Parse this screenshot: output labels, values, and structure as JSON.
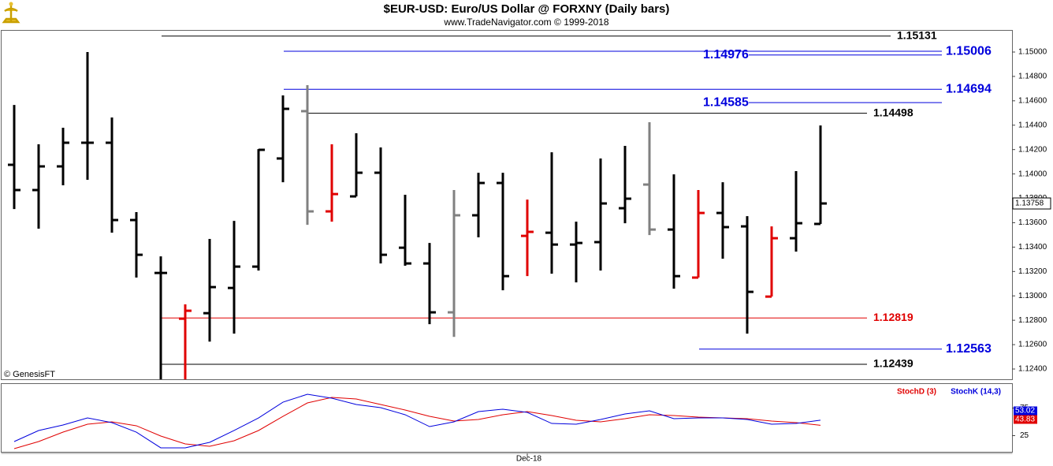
{
  "chart_data": {
    "type": "ohlc",
    "title": "$EUR-USD:  Euro/US Dollar @ FORXNY  (Daily bars)",
    "subtitle": "www.TradeNavigator.com © 1999-2018",
    "note": "© GenesisFT",
    "categories": [
      null,
      null,
      null,
      null,
      null,
      null,
      null,
      null,
      null,
      null,
      null,
      null,
      null,
      null,
      null,
      null,
      null,
      null,
      null,
      null,
      null,
      "Dec-18",
      null,
      null,
      null,
      null,
      null,
      null,
      null,
      null,
      null,
      null,
      null,
      null
    ],
    "open": [
      1.14075,
      1.13868,
      1.14062,
      1.14256,
      1.14256,
      1.13622,
      1.13188,
      1.12813,
      1.12858,
      1.13065,
      1.1324,
      1.14127,
      1.14515,
      1.13693,
      1.13816,
      1.1401,
      1.13395,
      1.13266,
      1.12865,
      1.13661,
      1.13926,
      1.13492,
      1.13518,
      1.13421,
      1.13441,
      1.13719,
      1.13913,
      1.13544,
      1.1315,
      1.1368,
      1.1357,
      1.12994,
      1.13473,
      1.1359
    ],
    "high": [
      1.14566,
      1.14243,
      1.14379,
      1.15,
      1.14463,
      1.13687,
      1.13324,
      1.1293,
      1.13467,
      1.13615,
      1.14204,
      1.14644,
      1.14728,
      1.14243,
      1.14334,
      1.14217,
      1.13829,
      1.13434,
      1.13868,
      1.1401,
      1.1401,
      1.1379,
      1.14178,
      1.13609,
      1.14127,
      1.1423,
      1.14424,
      1.13997,
      1.13868,
      1.13932,
      1.13654,
      1.1357,
      1.14023,
      1.14398
    ],
    "low": [
      1.13712,
      1.13551,
      1.13907,
      1.13952,
      1.13518,
      1.1315,
      1.12315,
      1.12315,
      1.12625,
      1.1269,
      1.13208,
      1.13932,
      1.13583,
      1.13609,
      1.13816,
      1.13266,
      1.13247,
      1.12768,
      1.12664,
      1.1348,
      1.13046,
      1.13162,
      1.13182,
      1.13111,
      1.13208,
      1.13596,
      1.13499,
      1.13059,
      1.1315,
      1.13305,
      1.1269,
      1.12994,
      1.13363,
      1.1359
    ],
    "close": [
      1.13868,
      1.14062,
      1.14256,
      1.14256,
      1.13622,
      1.13337,
      1.13188,
      1.12878,
      1.13072,
      1.1324,
      1.14198,
      1.14534,
      1.13693,
      1.13835,
      1.1401,
      1.13337,
      1.13266,
      1.12865,
      1.13661,
      1.13926,
      1.13162,
      1.13525,
      1.13421,
      1.13434,
      1.13758,
      1.13797,
      1.13544,
      1.13162,
      1.1368,
      1.13564,
      1.13033,
      1.13473,
      1.13596,
      1.13758
    ],
    "colors": [
      "#000000",
      "#000000",
      "#000000",
      "#000000",
      "#000000",
      "#000000",
      "#000000",
      "#e00000",
      "#000000",
      "#000000",
      "#000000",
      "#000000",
      "#808080",
      "#e00000",
      "#000000",
      "#000000",
      "#000000",
      "#000000",
      "#808080",
      "#000000",
      "#000000",
      "#e00000",
      "#000000",
      "#000000",
      "#000000",
      "#000000",
      "#808080",
      "#000000",
      "#e00000",
      "#000000",
      "#000000",
      "#e00000",
      "#000000",
      "#000000"
    ],
    "ylim": [
      1.12316,
      1.15181
    ],
    "yticks": [
      {
        "value": 1.124,
        "label": "1.12400"
      },
      {
        "value": 1.126,
        "label": "1.12600"
      },
      {
        "value": 1.128,
        "label": "1.12800"
      },
      {
        "value": 1.13,
        "label": "1.13000"
      },
      {
        "value": 1.132,
        "label": "1.13200"
      },
      {
        "value": 1.134,
        "label": "1.13400"
      },
      {
        "value": 1.136,
        "label": "1.13600"
      },
      {
        "value": 1.138,
        "label": "1.13800"
      },
      {
        "value": 1.14,
        "label": "1.14000"
      },
      {
        "value": 1.142,
        "label": "1.14200"
      },
      {
        "value": 1.144,
        "label": "1.14400"
      },
      {
        "value": 1.146,
        "label": "1.14600"
      },
      {
        "value": 1.148,
        "label": "1.14800"
      },
      {
        "value": 1.15,
        "label": "1.15000"
      }
    ],
    "levels": [
      {
        "value": 1.15131,
        "color": "#000000"
      },
      {
        "value": 1.15006,
        "color": "#0000dd"
      },
      {
        "value": 1.14976,
        "color": "#0000dd"
      },
      {
        "value": 1.14694,
        "color": "#0000dd"
      },
      {
        "value": 1.14585,
        "color": "#0000dd"
      },
      {
        "value": 1.14498,
        "color": "#000000"
      },
      {
        "value": 1.12819,
        "color": "#e00000"
      },
      {
        "value": 1.12563,
        "color": "#0000dd"
      },
      {
        "value": 1.12439,
        "color": "#000000"
      }
    ],
    "indicator": {
      "ylim": [
        -4.3,
        118.6
      ],
      "yticks": [
        25,
        75
      ],
      "series": [
        {
          "name": "StochD (3)",
          "color": "#e00000",
          "values": [
            1.4,
            14.3,
            31.4,
            45.7,
            50,
            42.9,
            24.3,
            10,
            5.7,
            15.7,
            34.3,
            60,
            84.3,
            94.3,
            91.4,
            81.4,
            71.4,
            60,
            51.4,
            54.3,
            62.9,
            68.6,
            61.4,
            52.9,
            50,
            55.7,
            62.9,
            61.4,
            58.6,
            57.1,
            55.7,
            51.4,
            48.6,
            43.83
          ]
        },
        {
          "name": "StochK (14,3)",
          "color": "#0000dd",
          "values": [
            14.3,
            34.3,
            44.3,
            57.1,
            48.6,
            31.4,
            2.9,
            2.9,
            12.9,
            34.3,
            57.1,
            85.7,
            100,
            92.9,
            81.4,
            75.7,
            62.9,
            41.4,
            50,
            68.6,
            72.9,
            67.1,
            47.1,
            45.7,
            54.3,
            64.3,
            70,
            55.7,
            57.1,
            57.1,
            54.3,
            45.7,
            47.1,
            53.02
          ]
        }
      ]
    }
  }
}
